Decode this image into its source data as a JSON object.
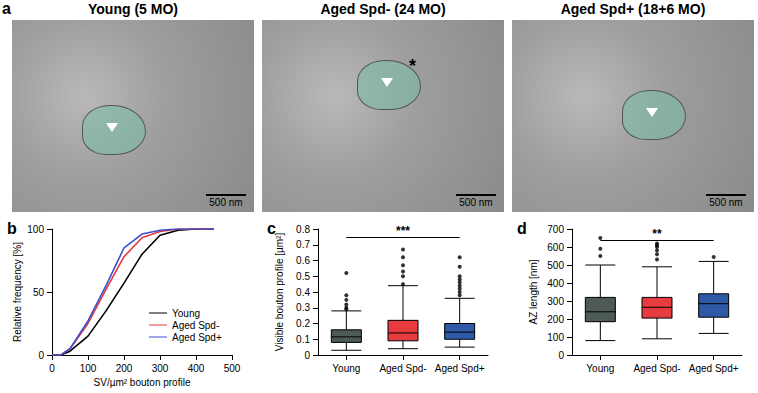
{
  "panel_a": {
    "panel_label": "a",
    "images": [
      {
        "title": "Young (5 MO)",
        "scale_bar": "500 nm"
      },
      {
        "title": "Aged Spd- (24 MO)",
        "scale_bar": "500 nm",
        "annotation": "*"
      },
      {
        "title": "Aged Spd+ (18+6 MO)",
        "scale_bar": "500 nm"
      }
    ]
  },
  "chart_data": [
    {
      "type": "line",
      "panel_label": "b",
      "xlabel": "SV/µm² bouton profile",
      "ylabel": "Relative frequency [%]",
      "x": [
        0,
        25,
        50,
        100,
        150,
        200,
        250,
        300,
        350,
        400,
        450
      ],
      "series": [
        {
          "name": "Young",
          "color": "#000000",
          "values": [
            0,
            0,
            3,
            15,
            35,
            57,
            80,
            95,
            99,
            100,
            100
          ]
        },
        {
          "name": "Aged Spd-",
          "color": "#e8383b",
          "values": [
            0,
            0,
            5,
            25,
            52,
            78,
            93,
            98,
            100,
            100,
            100
          ]
        },
        {
          "name": "Aged Spd+",
          "color": "#3a4fd0",
          "values": [
            0,
            0,
            5,
            27,
            55,
            85,
            96,
            99,
            100,
            100,
            100
          ]
        }
      ],
      "xlim": [
        0,
        500
      ],
      "xticks": [
        0,
        100,
        200,
        300,
        400,
        500
      ],
      "ylim": [
        0,
        100
      ],
      "yticks": [
        0,
        50,
        100
      ],
      "legend": "lower right",
      "grid": false
    },
    {
      "type": "boxplot",
      "panel_label": "c",
      "ylabel": "Visible bouton profile [µm²]",
      "categories": [
        "Young",
        "Aged Spd-",
        "Aged Spd+"
      ],
      "colors": [
        "#4d5a57",
        "#e63b3f",
        "#2e5aa8"
      ],
      "boxes": [
        {
          "min": 0.03,
          "q1": 0.08,
          "median": 0.115,
          "q3": 0.16,
          "max": 0.28,
          "outliers": [
            0.29,
            0.3,
            0.32,
            0.35,
            0.38,
            0.52
          ]
        },
        {
          "min": 0.04,
          "q1": 0.09,
          "median": 0.14,
          "q3": 0.22,
          "max": 0.44,
          "outliers": [
            0.45,
            0.5,
            0.53,
            0.57,
            0.62,
            0.67
          ]
        },
        {
          "min": 0.05,
          "q1": 0.1,
          "median": 0.145,
          "q3": 0.2,
          "max": 0.36,
          "outliers": [
            0.38,
            0.4,
            0.42,
            0.44,
            0.46,
            0.48,
            0.5,
            0.56,
            0.62
          ]
        }
      ],
      "significance": {
        "from": "Young",
        "to": "Aged Spd+",
        "y": 0.75,
        "label": "***"
      },
      "ylim": [
        0,
        0.8
      ],
      "yticks": [
        0,
        0.1,
        0.2,
        0.3,
        0.4,
        0.5,
        0.6,
        0.7,
        0.8
      ],
      "grid": false
    },
    {
      "type": "boxplot",
      "panel_label": "d",
      "ylabel": "AZ length [nm]",
      "categories": [
        "Young",
        "Aged Spd-",
        "Aged Spd+"
      ],
      "colors": [
        "#4d5a57",
        "#e63b3f",
        "#2e5aa8"
      ],
      "boxes": [
        {
          "min": 80,
          "q1": 185,
          "median": 240,
          "q3": 320,
          "max": 500,
          "outliers": [
            550,
            590,
            650
          ]
        },
        {
          "min": 90,
          "q1": 205,
          "median": 265,
          "q3": 320,
          "max": 490,
          "outliers": [
            530,
            560,
            580,
            600,
            610,
            620
          ]
        },
        {
          "min": 120,
          "q1": 210,
          "median": 285,
          "q3": 340,
          "max": 520,
          "outliers": [
            545
          ]
        }
      ],
      "significance": {
        "from": "Young",
        "to": "Aged Spd+",
        "y": 640,
        "label": "**"
      },
      "ylim": [
        0,
        700
      ],
      "yticks": [
        0,
        100,
        200,
        300,
        400,
        500,
        600,
        700
      ],
      "grid": false
    }
  ]
}
